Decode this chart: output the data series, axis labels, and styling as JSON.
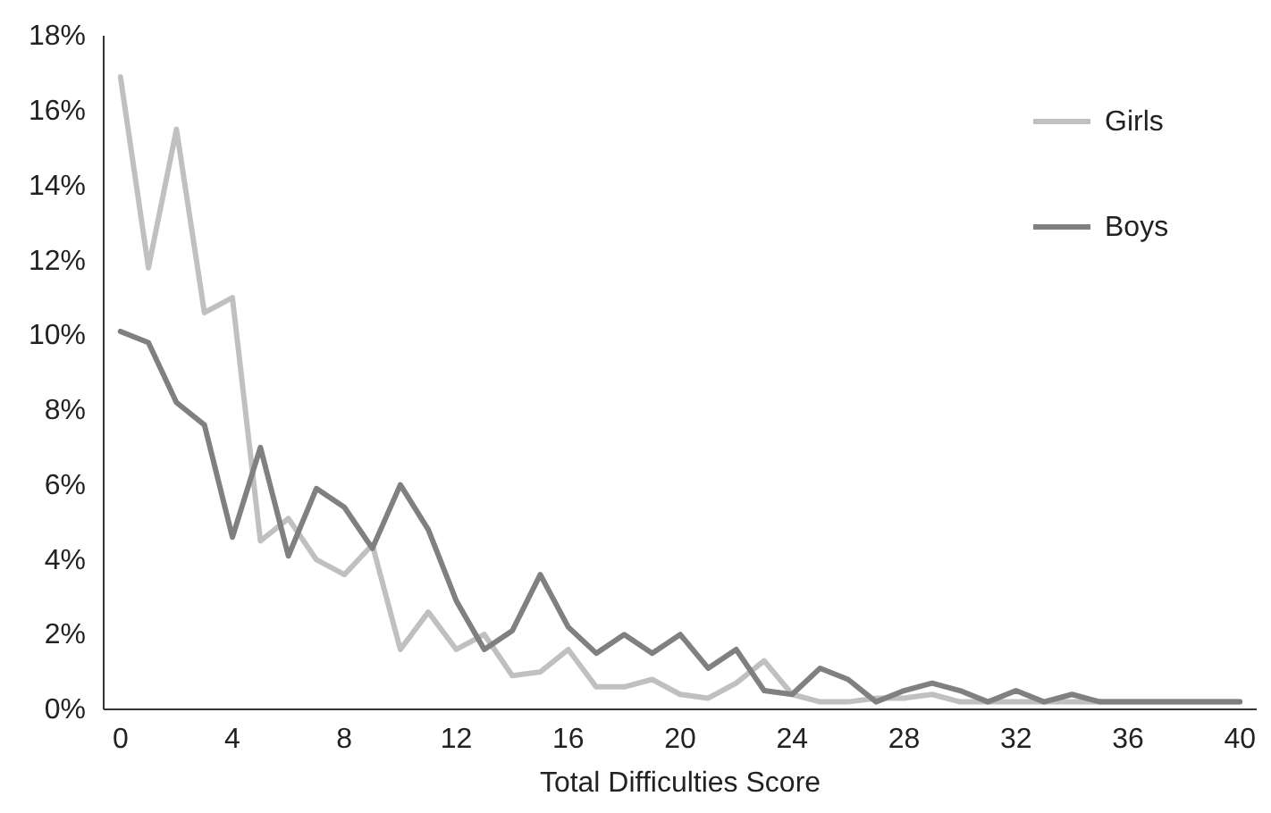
{
  "chart_data": {
    "type": "line",
    "xlabel": "Total Difficulties Score",
    "x": [
      0,
      1,
      2,
      3,
      4,
      5,
      6,
      7,
      8,
      9,
      10,
      11,
      12,
      13,
      14,
      15,
      16,
      17,
      18,
      19,
      20,
      21,
      22,
      23,
      24,
      25,
      26,
      27,
      28,
      29,
      30,
      31,
      32,
      33,
      34,
      35,
      36,
      37,
      38,
      39,
      40
    ],
    "series": [
      {
        "name": "Girls",
        "color": "#c0c0c0",
        "values": [
          16.9,
          11.8,
          15.5,
          10.6,
          11.0,
          4.5,
          5.1,
          4.0,
          3.6,
          4.4,
          1.6,
          2.6,
          1.6,
          2.0,
          0.9,
          1.0,
          1.6,
          0.6,
          0.6,
          0.8,
          0.4,
          0.3,
          0.7,
          1.3,
          0.4,
          0.2,
          0.2,
          0.3,
          0.3,
          0.4,
          0.2,
          0.2,
          0.2,
          0.2,
          0.2,
          0.2,
          0.2,
          0.2,
          0.2,
          0.2,
          0.2
        ]
      },
      {
        "name": "Boys",
        "color": "#808080",
        "values": [
          10.1,
          9.8,
          8.2,
          7.6,
          4.6,
          7.0,
          4.1,
          5.9,
          5.4,
          4.3,
          6.0,
          4.8,
          2.9,
          1.6,
          2.1,
          3.6,
          2.2,
          1.5,
          2.0,
          1.5,
          2.0,
          1.1,
          1.6,
          0.5,
          0.4,
          1.1,
          0.8,
          0.2,
          0.5,
          0.7,
          0.5,
          0.2,
          0.5,
          0.2,
          0.4,
          0.2,
          0.2,
          0.2,
          0.2,
          0.2,
          0.2
        ]
      }
    ],
    "xlim": [
      -0.6,
      40.6
    ],
    "xticks": [
      0,
      4,
      8,
      12,
      16,
      20,
      24,
      28,
      32,
      36,
      40
    ],
    "ylim": [
      0,
      18
    ],
    "yticks": [
      {
        "value": 0,
        "label": "0%"
      },
      {
        "value": 2,
        "label": "2%"
      },
      {
        "value": 4,
        "label": "4%"
      },
      {
        "value": 6,
        "label": "6%"
      },
      {
        "value": 8,
        "label": "8%"
      },
      {
        "value": 10,
        "label": "10%"
      },
      {
        "value": 12,
        "label": "12%"
      },
      {
        "value": 14,
        "label": "14%"
      },
      {
        "value": 16,
        "label": "16%"
      },
      {
        "value": 18,
        "label": "18%"
      }
    ],
    "grid": false,
    "legend": "top right",
    "marker": "none",
    "line_style": "solid"
  }
}
